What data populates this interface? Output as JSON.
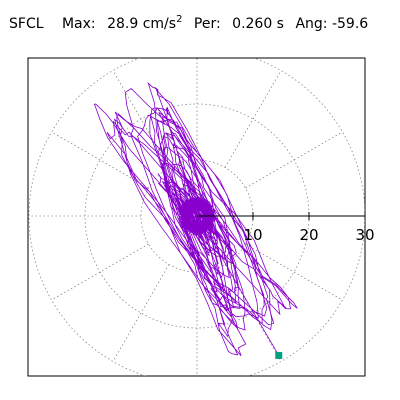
{
  "header": {
    "station": "SFCL",
    "max_label": "Max:",
    "max_value": "28.9",
    "max_unit": "cm/s",
    "max_unit_exp": "2",
    "per_label": "Per:",
    "per_value": "0.260 s",
    "ang_label": "Ang:",
    "ang_value": "-59.6"
  },
  "chart_data": {
    "type": "polar",
    "title": "SFCL  Max: 28.9 cm/s2  Per: 0.260 s  Ang: -59.6",
    "radial_ticks": [
      "10",
      "20",
      "30"
    ],
    "radial_range": [
      0,
      30
    ],
    "angular_gridlines_deg": [
      0,
      30,
      60,
      90,
      120,
      150,
      180,
      210,
      240,
      270,
      300,
      330
    ],
    "grid": true,
    "colors": {
      "trace": "#8800cc",
      "peak_marker": "#00a080",
      "axis": "#000000",
      "grid": "#888888"
    },
    "max": 28.9,
    "period_s": 0.26,
    "angle_deg": -59.6,
    "peak_point": {
      "x": 14.6,
      "y": -24.9
    },
    "trace_description_free": true
  }
}
